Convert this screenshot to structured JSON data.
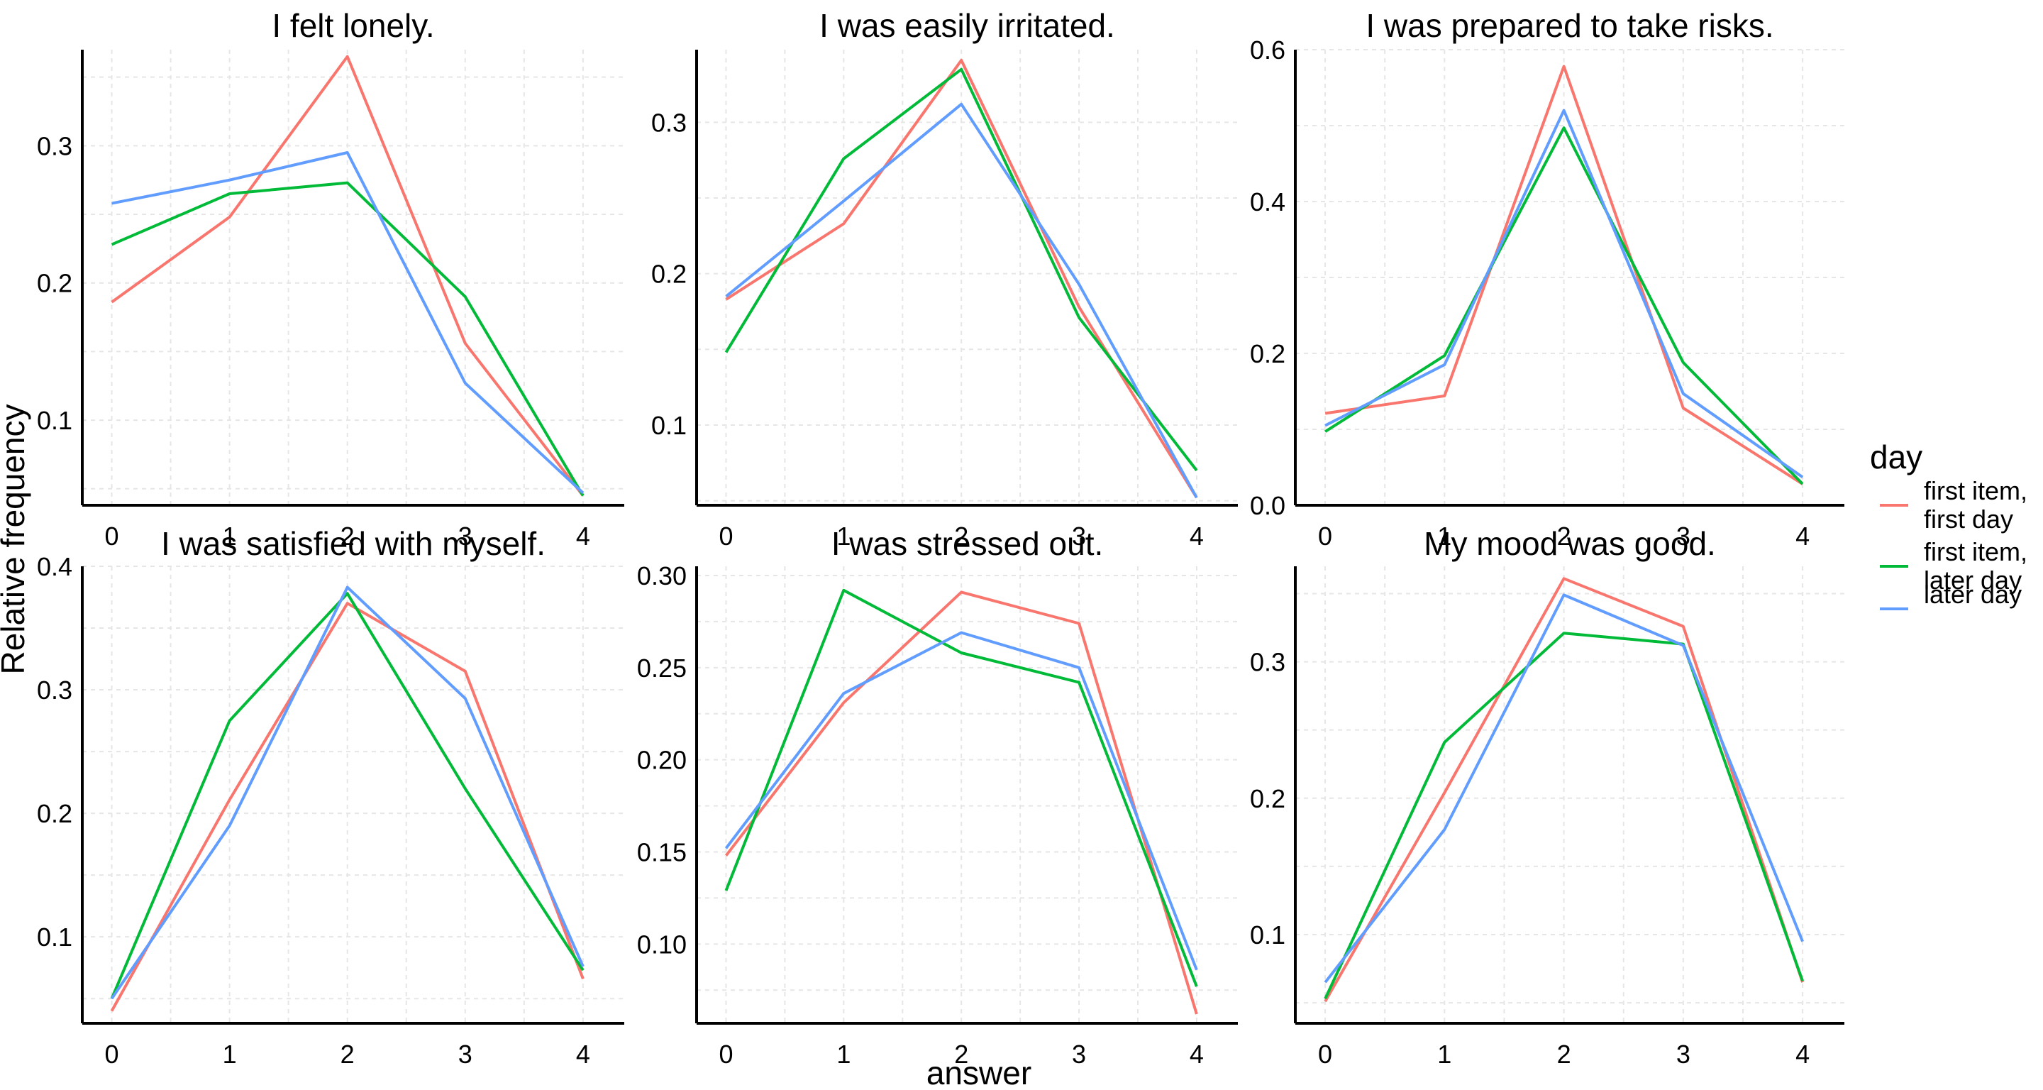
{
  "chart_data": {
    "type": "line",
    "xlabel": "answer",
    "ylabel": "Relative frequency",
    "x": [
      0,
      1,
      2,
      3,
      4
    ],
    "legend": {
      "title": "day",
      "placement": "right",
      "entries": [
        {
          "key": "first_first",
          "lines": [
            "first item,",
            "first day"
          ],
          "color": "#F8766D"
        },
        {
          "key": "first_later",
          "lines": [
            "first item,",
            "later day"
          ],
          "color": "#00BA38"
        },
        {
          "key": "later",
          "lines": [
            "later day"
          ],
          "color": "#619CFF"
        }
      ]
    },
    "grid": true,
    "panels": [
      {
        "title": "I felt lonely.",
        "ylim": [
          0.038,
          0.37
        ],
        "yticks": [
          0.1,
          0.2,
          0.3
        ],
        "ytick_labels": [
          "0.1",
          "0.2",
          "0.3"
        ],
        "series": [
          {
            "key": "first_first",
            "values": [
              0.186,
              0.248,
              0.365,
              0.156,
              0.045
            ]
          },
          {
            "key": "first_later",
            "values": [
              0.228,
              0.265,
              0.273,
              0.19,
              0.045
            ]
          },
          {
            "key": "later",
            "values": [
              0.258,
              0.275,
              0.295,
              0.127,
              0.047
            ]
          }
        ]
      },
      {
        "title": "I was easily irritated.",
        "ylim": [
          0.047,
          0.348
        ],
        "yticks": [
          0.1,
          0.2,
          0.3
        ],
        "ytick_labels": [
          "0.1",
          "0.2",
          "0.3"
        ],
        "series": [
          {
            "key": "first_first",
            "values": [
              0.183,
              0.233,
              0.341,
              0.178,
              0.052
            ]
          },
          {
            "key": "first_later",
            "values": [
              0.148,
              0.276,
              0.335,
              0.171,
              0.07
            ]
          },
          {
            "key": "later",
            "values": [
              0.185,
              0.248,
              0.312,
              0.193,
              0.052
            ]
          }
        ]
      },
      {
        "title": "I was prepared to take risks.",
        "ylim": [
          0,
          0.6
        ],
        "yticks": [
          0,
          0.2,
          0.4,
          0.6
        ],
        "ytick_labels": [
          "0.0",
          "0.2",
          "0.4",
          "0.6"
        ],
        "series": [
          {
            "key": "first_first",
            "values": [
              0.121,
              0.144,
              0.578,
              0.128,
              0.028
            ]
          },
          {
            "key": "first_later",
            "values": [
              0.097,
              0.197,
              0.497,
              0.188,
              0.028
            ]
          },
          {
            "key": "later",
            "values": [
              0.105,
              0.185,
              0.52,
              0.147,
              0.037
            ]
          }
        ]
      },
      {
        "title": "I was satisfied with myself.",
        "ylim": [
          0.03,
          0.4
        ],
        "yticks": [
          0.1,
          0.2,
          0.3,
          0.4
        ],
        "ytick_labels": [
          "0.1",
          "0.2",
          "0.3",
          "0.4"
        ],
        "series": [
          {
            "key": "first_first",
            "values": [
              0.04,
              0.211,
              0.37,
              0.315,
              0.066
            ]
          },
          {
            "key": "first_later",
            "values": [
              0.05,
              0.275,
              0.378,
              0.22,
              0.073
            ]
          },
          {
            "key": "later",
            "values": [
              0.05,
              0.19,
              0.383,
              0.293,
              0.076
            ]
          }
        ]
      },
      {
        "title": "I was stressed out.",
        "ylim": [
          0.057,
          0.305
        ],
        "yticks": [
          0.1,
          0.15,
          0.2,
          0.25,
          0.3
        ],
        "ytick_labels": [
          "0.10",
          "0.15",
          "0.20",
          "0.25",
          "0.30"
        ],
        "series": [
          {
            "key": "first_first",
            "values": [
              0.148,
              0.231,
              0.291,
              0.274,
              0.062
            ]
          },
          {
            "key": "first_later",
            "values": [
              0.129,
              0.292,
              0.258,
              0.242,
              0.077
            ]
          },
          {
            "key": "later",
            "values": [
              0.152,
              0.236,
              0.269,
              0.25,
              0.086
            ]
          }
        ]
      },
      {
        "title": "My mood was good.",
        "ylim": [
          0.035,
          0.37
        ],
        "yticks": [
          0.1,
          0.2,
          0.3
        ],
        "ytick_labels": [
          "0.1",
          "0.2",
          "0.3"
        ],
        "series": [
          {
            "key": "first_first",
            "values": [
              0.051,
              0.204,
              0.361,
              0.326,
              0.065
            ]
          },
          {
            "key": "first_later",
            "values": [
              0.053,
              0.241,
              0.321,
              0.313,
              0.066
            ]
          },
          {
            "key": "later",
            "values": [
              0.065,
              0.177,
              0.349,
              0.312,
              0.095
            ]
          }
        ]
      }
    ]
  }
}
